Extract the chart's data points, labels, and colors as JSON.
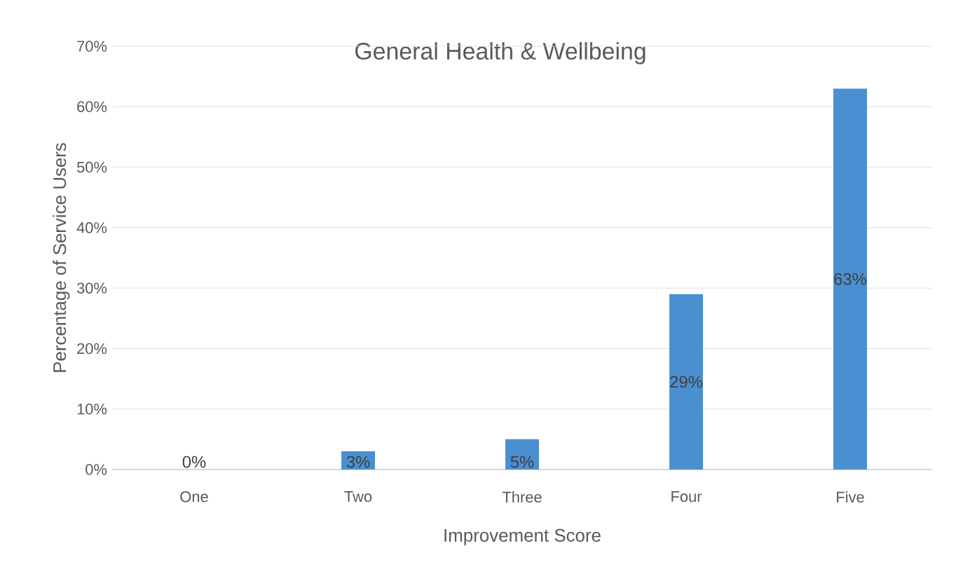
{
  "chart_data": {
    "type": "bar",
    "title": "General Health & Wellbeing",
    "xlabel": "Improvement Score",
    "ylabel": "Percentage of Service Users",
    "categories": [
      "One",
      "Two",
      "Three",
      "Four",
      "Five"
    ],
    "values": [
      0,
      3,
      5,
      29,
      63
    ],
    "value_labels": [
      "0%",
      "3%",
      "5%",
      "29%",
      "63%"
    ],
    "color": "#4a90d0",
    "ylim": [
      0,
      70
    ],
    "yticks": [
      {
        "value": 0,
        "label": "0%"
      },
      {
        "value": 10,
        "label": "10%"
      },
      {
        "value": 20,
        "label": "20%"
      },
      {
        "value": 30,
        "label": "30%"
      },
      {
        "value": 40,
        "label": "40%"
      },
      {
        "value": 50,
        "label": "50%"
      },
      {
        "value": 60,
        "label": "60%"
      },
      {
        "value": 70,
        "label": "70%"
      }
    ],
    "grid": "y"
  }
}
